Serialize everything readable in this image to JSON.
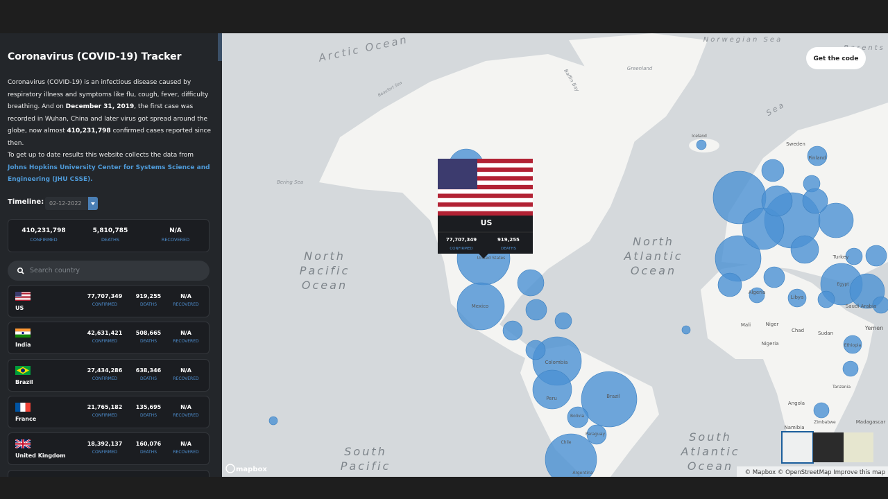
{
  "header": {
    "title": "Coronavirus (COVID-19) Tracker"
  },
  "intro": {
    "parts": [
      "Coronavirus (COVID-19) is an infectious disease caused by respiratory illness and symptoms like flu, cough, fever, difficulty breathing. And on ",
      "December 31, 2019",
      ", the first case was recorded in Wuhan, China and later virus got spread around the globe, now almost ",
      "410,231,798",
      " confirmed cases reported since then."
    ]
  },
  "source": {
    "text": "To get up to date results this website collects the data from ",
    "link": "Johns Hopkins University Center for Systems Science and Engineering (JHU CSSE)."
  },
  "timeline": {
    "label": "Timeline:",
    "date": "02-12-2022"
  },
  "stat_labels": {
    "confirmed": "CONFIRMED",
    "deaths": "DEATHS",
    "recovered": "RECOVERED"
  },
  "totals": {
    "confirmed": "410,231,798",
    "deaths": "5,810,785",
    "recovered": "N/A"
  },
  "search": {
    "placeholder": "Search country"
  },
  "countries": [
    {
      "name": "US",
      "confirmed": "77,707,349",
      "deaths": "919,255",
      "recovered": "N/A"
    },
    {
      "name": "India",
      "confirmed": "42,631,421",
      "deaths": "508,665",
      "recovered": "N/A"
    },
    {
      "name": "Brazil",
      "confirmed": "27,434,286",
      "deaths": "638,346",
      "recovered": "N/A"
    },
    {
      "name": "France",
      "confirmed": "21,765,182",
      "deaths": "135,695",
      "recovered": "N/A"
    },
    {
      "name": "United Kingdom",
      "confirmed": "18,392,137",
      "deaths": "160,076",
      "recovered": "N/A"
    }
  ],
  "map": {
    "button": "Get the code",
    "popup": {
      "name": "US",
      "confirmed": "77,707,349",
      "deaths": "919,255"
    },
    "oceans": [
      {
        "lines": [
          "North",
          "Pacific",
          "Ocean"
        ]
      },
      {
        "lines": [
          "North",
          "Atlantic",
          "Ocean"
        ]
      },
      {
        "lines": [
          "South",
          "Pacific"
        ]
      },
      {
        "lines": [
          "South",
          "Atlantic",
          "Ocean"
        ]
      }
    ],
    "labels": [
      "Arctic Ocean",
      "Barents",
      "Sea",
      "Norwegian Sea",
      "Greenland",
      "Baffin Bay",
      "Beaufort Sea",
      "Bering Sea",
      "Iceland",
      "Sweden",
      "Finland",
      "United States",
      "Mexico",
      "Colombia",
      "Peru",
      "Brazil",
      "Bolivia",
      "Paraguay",
      "Chile",
      "Argentina",
      "Algeria",
      "Libya",
      "Egypt",
      "Turkey",
      "Mali",
      "Niger",
      "Chad",
      "Sudan",
      "Nigeria",
      "Saudi Arabia",
      "Yemen",
      "Ethiopia",
      "Tanzania",
      "Angola",
      "Namibia",
      "Zimbabwe",
      "Madagascar"
    ],
    "logo": "mapbox",
    "attribution": "© Mapbox © OpenStreetMap Improve this map"
  }
}
